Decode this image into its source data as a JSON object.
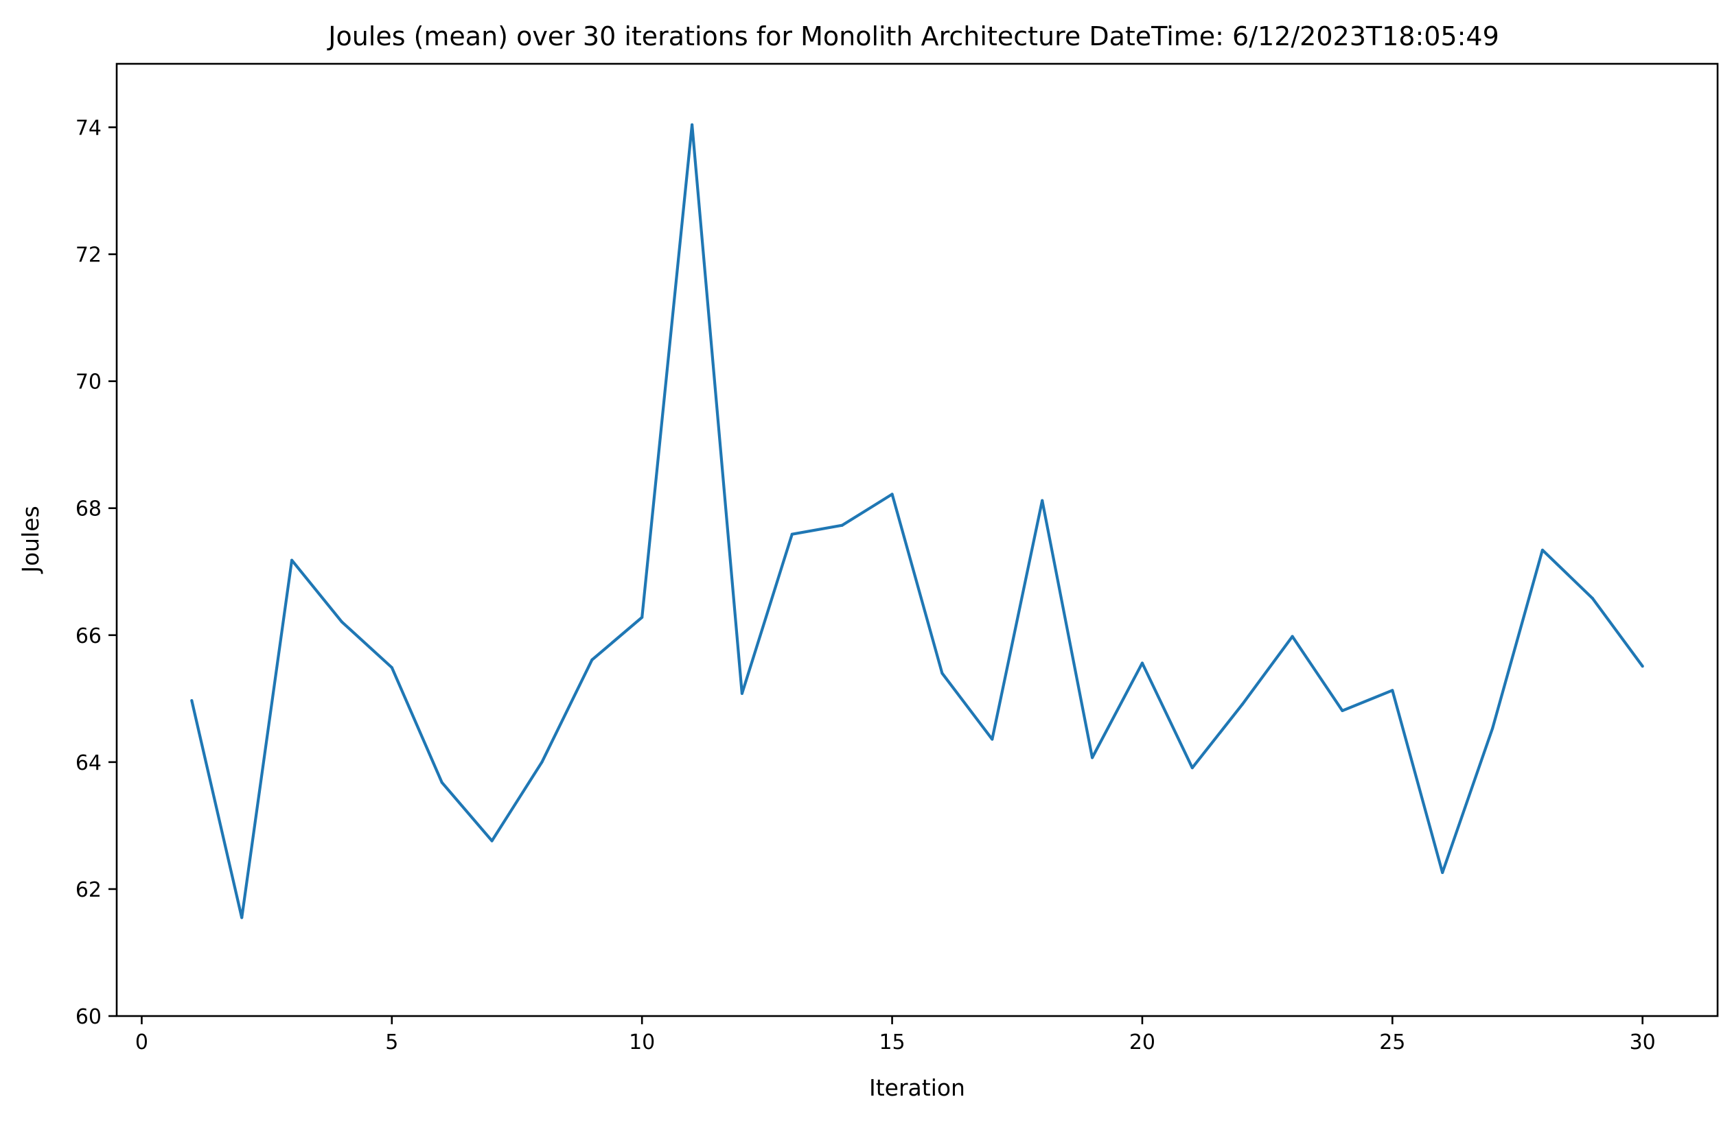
{
  "chart_data": {
    "type": "line",
    "title": "Joules (mean) over 30 iterations for Monolith Architecture DateTime: 6/12/2023T18:05:49",
    "xlabel": "Iteration",
    "ylabel": "Joules",
    "xlim": [
      -0.5,
      31.5
    ],
    "ylim": [
      60,
      75
    ],
    "xticks": [
      0,
      5,
      10,
      15,
      20,
      25,
      30
    ],
    "yticks": [
      60,
      62,
      64,
      66,
      68,
      70,
      72,
      74
    ],
    "grid": false,
    "colors": {
      "line": "#1f77b4",
      "axes": "#000000",
      "background": "#ffffff"
    },
    "series": [
      {
        "x": [
          1,
          2,
          3,
          4,
          5,
          6,
          7,
          8,
          9,
          10,
          11,
          12,
          13,
          14,
          15,
          16,
          17,
          18,
          19,
          20,
          21,
          22,
          23,
          24,
          25,
          26,
          27,
          28,
          29,
          30
        ],
        "values": [
          64.97,
          61.55,
          67.18,
          66.21,
          65.49,
          63.68,
          62.76,
          64.0,
          65.61,
          66.28,
          74.04,
          65.08,
          67.59,
          67.73,
          68.22,
          65.4,
          64.36,
          68.12,
          64.07,
          65.56,
          63.91,
          64.91,
          65.98,
          64.81,
          65.13,
          62.26,
          64.53,
          67.34,
          66.58,
          65.51
        ]
      }
    ]
  }
}
